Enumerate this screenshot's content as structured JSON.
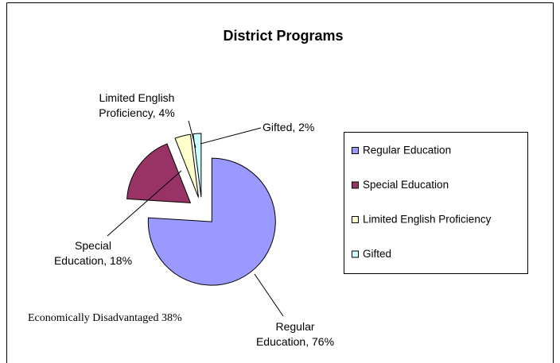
{
  "chart_data": {
    "type": "pie",
    "title": "District Programs",
    "categories": [
      "Regular Education",
      "Special Education",
      "Limited English Proficiency",
      "Gifted"
    ],
    "values": [
      76,
      18,
      4,
      2
    ],
    "value_labels": [
      "Regular Education, 76%",
      "Special Education, 18%",
      "Limited English Proficiency, 4%",
      "Gifted, 2%"
    ],
    "colors": [
      "#9999ff",
      "#993366",
      "#ffffcc",
      "#ccffff"
    ],
    "annotation": "Economically Disadvantaged 38%",
    "legend": "right"
  }
}
